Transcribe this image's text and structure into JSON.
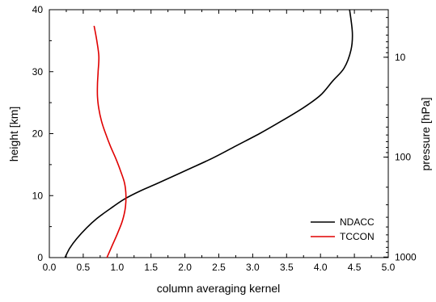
{
  "chart_data": {
    "type": "line",
    "xlabel": "column averaging kernel",
    "ylabel": "height [km]",
    "y2label": "pressure [hPa]",
    "xlim": [
      0.0,
      5.0
    ],
    "ylim": [
      0,
      40
    ],
    "x_ticks": [
      "0.0",
      "0.5",
      "1.0",
      "1.5",
      "2.0",
      "2.5",
      "3.0",
      "3.5",
      "4.0",
      "4.5",
      "5.0"
    ],
    "y_ticks": [
      "0",
      "10",
      "20",
      "30",
      "40"
    ],
    "y2_scale": "log",
    "y2_ticks": [
      "10",
      "100",
      "1000"
    ],
    "grid": false,
    "legend_position": "bottom-right",
    "series": [
      {
        "name": "NDACC",
        "color": "#000000",
        "points": [
          [
            0.23,
            0
          ],
          [
            0.3,
            1.5
          ],
          [
            0.4,
            3.0
          ],
          [
            0.55,
            4.8
          ],
          [
            0.7,
            6.3
          ],
          [
            0.9,
            7.9
          ],
          [
            1.1,
            9.4
          ],
          [
            1.35,
            10.8
          ],
          [
            1.6,
            12.0
          ],
          [
            2.0,
            14.0
          ],
          [
            2.4,
            16.0
          ],
          [
            2.75,
            18.0
          ],
          [
            3.1,
            20.0
          ],
          [
            3.42,
            22.0
          ],
          [
            3.75,
            24.2
          ],
          [
            4.0,
            26.2
          ],
          [
            4.18,
            28.5
          ],
          [
            4.35,
            30.6
          ],
          [
            4.45,
            33.5
          ],
          [
            4.47,
            36.3
          ],
          [
            4.43,
            40.0
          ]
        ]
      },
      {
        "name": "TCCON",
        "color": "#e00000",
        "points": [
          [
            0.85,
            0
          ],
          [
            0.93,
            2.0
          ],
          [
            1.01,
            4.0
          ],
          [
            1.08,
            6.0
          ],
          [
            1.12,
            8.0
          ],
          [
            1.13,
            10.0
          ],
          [
            1.11,
            12.0
          ],
          [
            1.05,
            14.0
          ],
          [
            0.98,
            16.0
          ],
          [
            0.9,
            18.0
          ],
          [
            0.83,
            20.0
          ],
          [
            0.77,
            22.0
          ],
          [
            0.73,
            24.0
          ],
          [
            0.71,
            26.0
          ],
          [
            0.71,
            28.0
          ],
          [
            0.72,
            30.0
          ],
          [
            0.73,
            32.5
          ],
          [
            0.7,
            35.0
          ],
          [
            0.66,
            37.4
          ]
        ]
      }
    ]
  }
}
